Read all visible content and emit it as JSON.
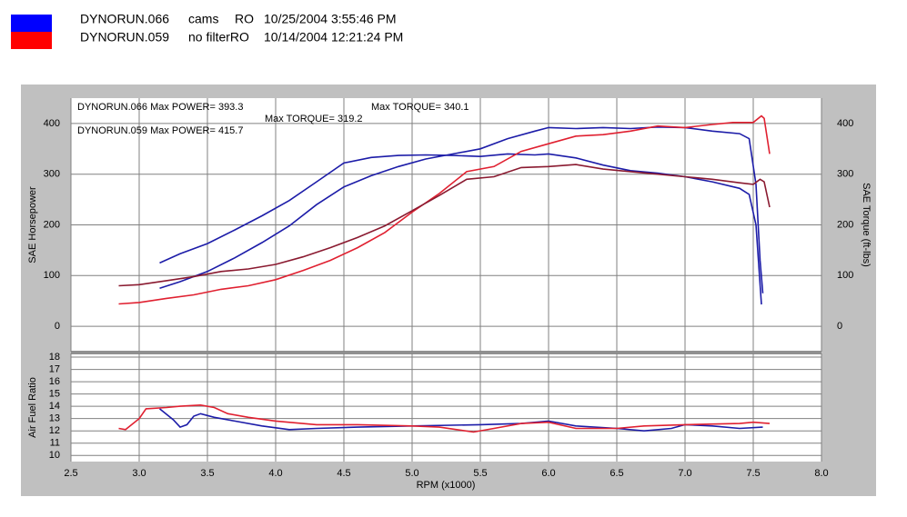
{
  "runs": [
    {
      "color": "#0000ff",
      "fields": [
        "DYNORUN.066",
        "cams",
        "RO",
        "10/25/2004 3:55:46 PM"
      ]
    },
    {
      "color": "#ff0000",
      "fields": [
        "DYNORUN.059",
        "no filterRO",
        "10/14/2004 12:21:24 PM"
      ]
    }
  ],
  "x_axis": {
    "label": "RPM (x1000)",
    "xlim": [
      2.5,
      8.0
    ],
    "xticks": [
      2.5,
      {
        "value": 3,
        "label": "3.0"
      },
      3.5,
      {
        "value": 4,
        "label": "4.0"
      },
      4.5,
      {
        "value": 5,
        "label": "5.0"
      },
      5.5,
      {
        "value": 6,
        "label": "6.0"
      },
      6.5,
      {
        "value": 7,
        "label": "7.0"
      },
      7.5,
      {
        "value": 8,
        "label": "8.0"
      }
    ]
  },
  "chart_data": [
    {
      "type": "line",
      "ylabel": "SAE Horsepower",
      "y2label": "SAE Torque (ft-lbs)",
      "ylim": [
        -50,
        450
      ],
      "yticks": [
        0,
        100,
        200,
        300,
        400
      ],
      "y2lim": [
        -50,
        450
      ],
      "y2ticks": [
        0,
        100,
        200,
        300,
        400
      ],
      "grid": true,
      "annotations": [
        {
          "text": "DYNORUN.066  Max POWER= 393.3",
          "color": "#1010c0"
        },
        {
          "text": "Max TORQUE= 340.1",
          "color": "#1010c0"
        },
        {
          "text": "Max TORQUE= 319.2",
          "color": "#8a1a30"
        },
        {
          "text": "DYNORUN.059  Max POWER= 415.7",
          "color": "#e02030"
        }
      ],
      "series": [
        {
          "color": "#1c1ca8",
          "x": [
            3.15,
            3.3,
            3.5,
            3.7,
            3.9,
            4.1,
            4.3,
            4.5,
            4.7,
            4.9,
            5.1,
            5.3,
            5.5,
            5.7,
            5.9,
            6.0,
            6.2,
            6.4,
            6.6,
            6.8,
            7.0,
            7.2,
            7.4,
            7.47,
            7.52,
            7.55,
            7.57
          ],
          "values": [
            75,
            88,
            108,
            135,
            165,
            198,
            240,
            275,
            297,
            315,
            330,
            340,
            350,
            370,
            385,
            392,
            390,
            392,
            390,
            393,
            392,
            385,
            380,
            370,
            280,
            130,
            65
          ]
        },
        {
          "color": "#1c1ca8",
          "axis": "y2",
          "x": [
            3.15,
            3.3,
            3.5,
            3.7,
            3.9,
            4.1,
            4.3,
            4.5,
            4.7,
            4.9,
            5.1,
            5.3,
            5.5,
            5.7,
            5.9,
            6.0,
            6.2,
            6.4,
            6.6,
            6.8,
            7.0,
            7.2,
            7.4,
            7.47,
            7.52,
            7.56
          ],
          "values": [
            125,
            143,
            163,
            190,
            218,
            248,
            285,
            322,
            333,
            337,
            338,
            337,
            335,
            340,
            338,
            340,
            332,
            318,
            307,
            302,
            295,
            285,
            272,
            260,
            200,
            43
          ]
        },
        {
          "color": "#e02030",
          "x": [
            2.85,
            3.0,
            3.2,
            3.4,
            3.6,
            3.8,
            4.0,
            4.2,
            4.4,
            4.6,
            4.8,
            5.0,
            5.2,
            5.4,
            5.6,
            5.8,
            6.0,
            6.2,
            6.4,
            6.6,
            6.8,
            7.0,
            7.2,
            7.35,
            7.5,
            7.56,
            7.58,
            7.62
          ],
          "values": [
            44,
            47,
            55,
            62,
            73,
            80,
            92,
            110,
            130,
            155,
            185,
            225,
            262,
            305,
            315,
            345,
            360,
            375,
            378,
            385,
            395,
            392,
            398,
            402,
            402,
            415,
            410,
            340
          ]
        },
        {
          "color": "#8a1a30",
          "axis": "y2",
          "x": [
            2.85,
            3.0,
            3.2,
            3.4,
            3.6,
            3.8,
            4.0,
            4.2,
            4.4,
            4.6,
            4.8,
            5.0,
            5.2,
            5.4,
            5.6,
            5.8,
            6.0,
            6.2,
            6.4,
            6.6,
            6.8,
            7.0,
            7.2,
            7.4,
            7.5,
            7.55,
            7.58,
            7.62
          ],
          "values": [
            80,
            82,
            90,
            98,
            108,
            113,
            122,
            137,
            155,
            175,
            198,
            228,
            258,
            290,
            295,
            313,
            315,
            319,
            310,
            305,
            300,
            295,
            290,
            283,
            280,
            290,
            285,
            235
          ]
        }
      ]
    },
    {
      "type": "line",
      "ylabel": "Air Fuel Ratio",
      "ylim": [
        9.5,
        18.3
      ],
      "yticks": [
        10,
        11,
        12,
        13,
        14,
        15,
        16,
        17,
        18
      ],
      "grid": true,
      "series": [
        {
          "color": "#1c1ca8",
          "x": [
            3.15,
            3.25,
            3.3,
            3.35,
            3.4,
            3.45,
            3.55,
            3.7,
            3.9,
            4.1,
            4.3,
            4.6,
            5.0,
            5.5,
            5.8,
            6.0,
            6.2,
            6.5,
            6.7,
            6.9,
            7.0,
            7.2,
            7.4,
            7.57
          ],
          "values": [
            13.8,
            12.9,
            12.3,
            12.5,
            13.2,
            13.4,
            13.1,
            12.8,
            12.4,
            12.1,
            12.2,
            12.3,
            12.4,
            12.5,
            12.6,
            12.8,
            12.4,
            12.2,
            12.0,
            12.2,
            12.5,
            12.4,
            12.2,
            12.3
          ]
        },
        {
          "color": "#e02030",
          "x": [
            2.85,
            2.9,
            3.0,
            3.05,
            3.2,
            3.3,
            3.45,
            3.55,
            3.65,
            3.8,
            4.0,
            4.3,
            4.6,
            5.0,
            5.2,
            5.45,
            5.6,
            5.8,
            6.0,
            6.2,
            6.5,
            6.7,
            7.0,
            7.4,
            7.5,
            7.62
          ],
          "values": [
            12.2,
            12.1,
            13.0,
            13.8,
            13.9,
            14.0,
            14.1,
            13.9,
            13.4,
            13.1,
            12.8,
            12.5,
            12.5,
            12.4,
            12.3,
            11.9,
            12.2,
            12.6,
            12.7,
            12.2,
            12.2,
            12.4,
            12.5,
            12.6,
            12.7,
            12.6
          ]
        }
      ]
    }
  ]
}
